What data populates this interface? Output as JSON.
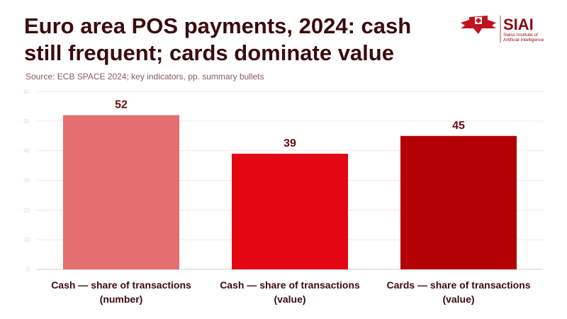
{
  "title": "Euro area POS payments, 2024: cash still frequent; cards dominate value",
  "source": "Source: ECB SPACE 2024; key indicators, pp. summary bullets",
  "logo": {
    "name": "SIAI",
    "sub1": "Swiss Institute of",
    "sub2": "Artificial Intelligence"
  },
  "chart_data": {
    "type": "bar",
    "title": "Euro area POS payments, 2024: cash still frequent; cards dominate value",
    "categories": [
      [
        "Cash — share of transactions",
        "(number)"
      ],
      [
        "Cash — share of transactions",
        "(value)"
      ],
      [
        "Cards — share of transactions",
        "(value)"
      ]
    ],
    "values": [
      52,
      39,
      45
    ],
    "colors": [
      "#e36f6f",
      "#e30613",
      "#b30005"
    ],
    "ylim": [
      0,
      60
    ],
    "yticks": [
      0,
      10,
      20,
      30,
      40,
      50,
      60
    ],
    "xlabel": "",
    "ylabel": "",
    "grid": true
  }
}
